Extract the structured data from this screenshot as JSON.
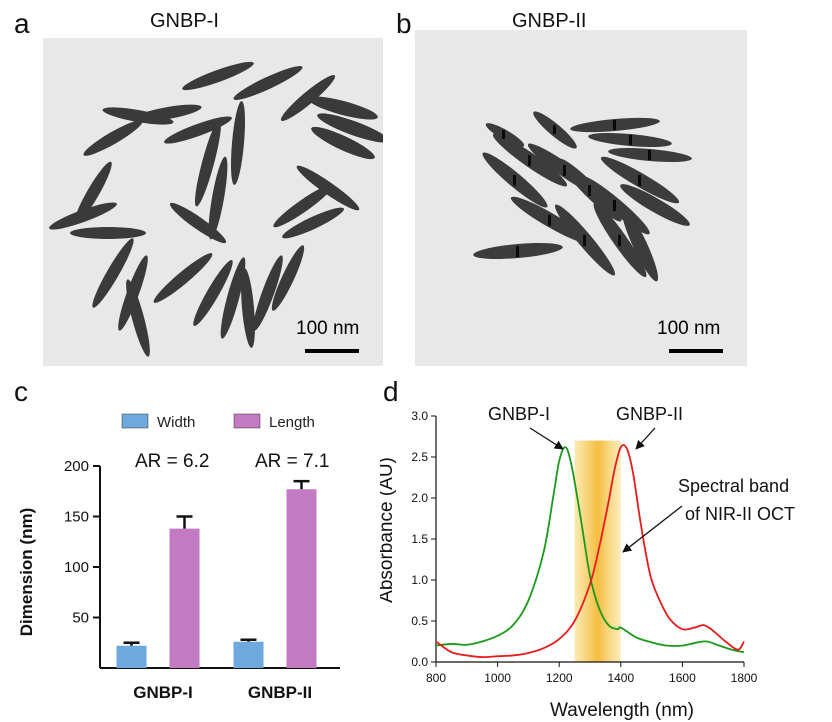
{
  "panels": {
    "a": {
      "letter": "a",
      "title": "GNBP-I",
      "scale_label": "100 nm"
    },
    "b": {
      "letter": "b",
      "title": "GNBP-II",
      "scale_label": "100 nm"
    },
    "c": {
      "letter": "c"
    },
    "d": {
      "letter": "d"
    }
  },
  "chart_data": [
    {
      "type": "bar",
      "panel": "c",
      "categories": [
        "GNBP-I",
        "GNBP-II"
      ],
      "series": [
        {
          "name": "Width",
          "color": "#6fa8dc",
          "values": [
            22,
            26
          ],
          "errors": [
            3,
            2
          ]
        },
        {
          "name": "Length",
          "color": "#c27bc2",
          "values": [
            138,
            177
          ],
          "errors": [
            12,
            8
          ]
        }
      ],
      "annotations": [
        "AR = 6.2",
        "AR = 7.1"
      ],
      "ylabel": "Dimension (nm)",
      "ylim": [
        0,
        200
      ],
      "yticks": [
        50,
        100,
        150,
        200
      ],
      "legend": "top"
    },
    {
      "type": "line",
      "panel": "d",
      "xlabel": "Wavelength (nm)",
      "ylabel": "Absorbance (AU)",
      "xlim": [
        800,
        1800
      ],
      "ylim": [
        0,
        3.0
      ],
      "xticks": [
        800,
        1000,
        1200,
        1400,
        1600,
        1800
      ],
      "yticks": [
        0.0,
        0.5,
        1.0,
        1.5,
        2.0,
        2.5,
        3.0
      ],
      "series": [
        {
          "name": "GNBP-I",
          "color": "#1a9a1a",
          "x": [
            800,
            850,
            900,
            950,
            1000,
            1050,
            1100,
            1150,
            1180,
            1200,
            1220,
            1240,
            1270,
            1300,
            1330,
            1360,
            1390,
            1400,
            1450,
            1500,
            1550,
            1600,
            1650,
            1680,
            1720,
            1760,
            1800
          ],
          "y": [
            0.2,
            0.22,
            0.21,
            0.25,
            0.32,
            0.45,
            0.75,
            1.35,
            2.0,
            2.45,
            2.62,
            2.4,
            1.75,
            1.05,
            0.65,
            0.45,
            0.4,
            0.42,
            0.3,
            0.24,
            0.2,
            0.2,
            0.24,
            0.25,
            0.2,
            0.15,
            0.12
          ]
        },
        {
          "name": "GNBP-II",
          "color": "#e81c1c",
          "x": [
            800,
            850,
            900,
            950,
            1000,
            1050,
            1100,
            1150,
            1200,
            1250,
            1300,
            1330,
            1360,
            1380,
            1400,
            1420,
            1440,
            1460,
            1480,
            1500,
            1530,
            1560,
            1600,
            1640,
            1670,
            1700,
            1740,
            1780,
            1800
          ],
          "y": [
            0.25,
            0.12,
            0.08,
            0.06,
            0.07,
            0.08,
            0.11,
            0.17,
            0.28,
            0.5,
            0.95,
            1.4,
            1.95,
            2.35,
            2.62,
            2.6,
            2.3,
            1.8,
            1.35,
            1.0,
            0.72,
            0.52,
            0.4,
            0.42,
            0.45,
            0.38,
            0.25,
            0.15,
            0.25
          ]
        }
      ],
      "band": {
        "from": 1250,
        "to": 1400,
        "label_lines": [
          "Spectral band",
          "of NIR-II OCT"
        ]
      },
      "annotations": [
        "GNBP-I",
        "GNBP-II"
      ]
    }
  ]
}
